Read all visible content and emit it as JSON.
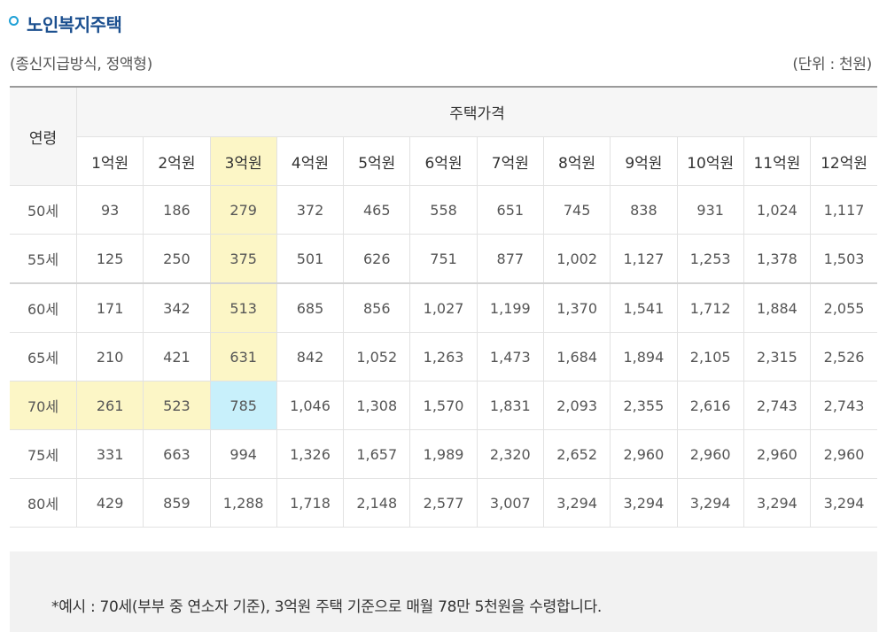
{
  "title": "노인복지주택",
  "subtitle": "(종신지급방식, 정액형)",
  "unit": "(단위 : 천원)",
  "table": {
    "age_header": "연령",
    "group_header": "주택가격",
    "price_headers": [
      "1억원",
      "2억원",
      "3억원",
      "4억원",
      "5억원",
      "6억원",
      "7억원",
      "8억원",
      "9억원",
      "10억원",
      "11억원",
      "12억원"
    ],
    "rows": [
      {
        "age": "50세",
        "values": [
          "93",
          "186",
          "279",
          "372",
          "465",
          "558",
          "651",
          "745",
          "838",
          "931",
          "1,024",
          "1,117"
        ]
      },
      {
        "age": "55세",
        "values": [
          "125",
          "250",
          "375",
          "501",
          "626",
          "751",
          "877",
          "1,002",
          "1,127",
          "1,253",
          "1,378",
          "1,503"
        ]
      },
      {
        "age": "60세",
        "values": [
          "171",
          "342",
          "513",
          "685",
          "856",
          "1,027",
          "1,199",
          "1,370",
          "1,541",
          "1,712",
          "1,884",
          "2,055"
        ]
      },
      {
        "age": "65세",
        "values": [
          "210",
          "421",
          "631",
          "842",
          "1,052",
          "1,263",
          "1,473",
          "1,684",
          "1,894",
          "2,105",
          "2,315",
          "2,526"
        ]
      },
      {
        "age": "70세",
        "values": [
          "261",
          "523",
          "785",
          "1,046",
          "1,308",
          "1,570",
          "1,831",
          "2,093",
          "2,355",
          "2,616",
          "2,743",
          "2,743"
        ]
      },
      {
        "age": "75세",
        "values": [
          "331",
          "663",
          "994",
          "1,326",
          "1,657",
          "1,989",
          "2,320",
          "2,652",
          "2,960",
          "2,960",
          "2,960",
          "2,960"
        ]
      },
      {
        "age": "80세",
        "values": [
          "429",
          "859",
          "1,288",
          "1,718",
          "2,148",
          "2,577",
          "3,007",
          "3,294",
          "3,294",
          "3,294",
          "3,294",
          "3,294"
        ]
      }
    ]
  },
  "note": "*예시 : 70세(부부 중 연소자 기준), 3억원 주택 기준으로 매월 78만 5천원을 수령합니다.",
  "colors": {
    "title": "#1b4f8f",
    "bullet": "#1fa0d6",
    "highlight_yellow": "#fcf6c6",
    "highlight_cyan": "#c8f0fb"
  },
  "icons": {
    "bullet": "circle-bullet-icon"
  }
}
